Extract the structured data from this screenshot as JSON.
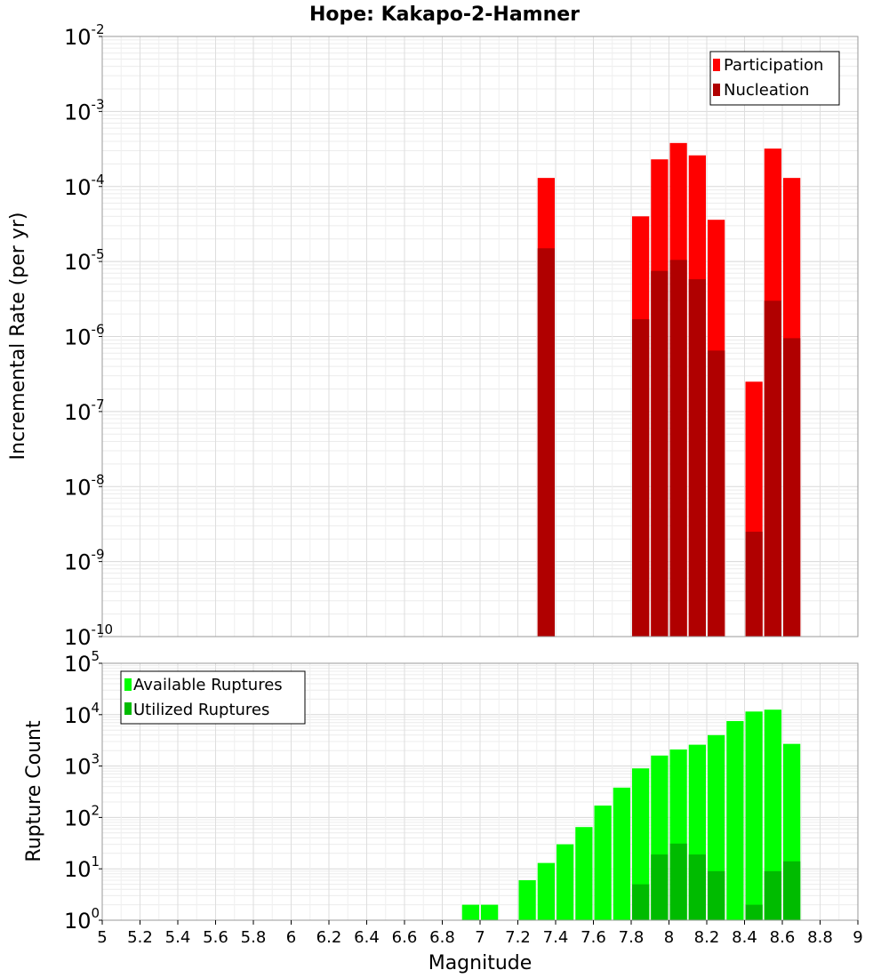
{
  "chart_data": [
    {
      "type": "bar",
      "title": "Hope: Kakapo-2-Hamner",
      "xlabel": "",
      "ylabel": "Incremental Rate (per yr)",
      "yscale": "log",
      "ylim_exponents": [
        -10,
        -2
      ],
      "xlim": [
        5,
        9
      ],
      "bin_width": 0.1,
      "legend_position": "top-right",
      "x": [
        7.35,
        7.85,
        7.95,
        8.05,
        8.15,
        8.25,
        8.45,
        8.55,
        8.65
      ],
      "series": [
        {
          "name": "Participation",
          "color": "#ff0000",
          "values": [
            0.00013,
            4e-05,
            0.00023,
            0.00038,
            0.00026,
            3.6e-05,
            2.5e-07,
            0.00032,
            0.00013
          ]
        },
        {
          "name": "Nucleation",
          "color": "#b00000",
          "values": [
            1.5e-05,
            1.7e-06,
            7.5e-06,
            1.05e-05,
            5.8e-06,
            6.5e-07,
            2.5e-09,
            3e-06,
            9.5e-07
          ]
        }
      ]
    },
    {
      "type": "bar",
      "title": "",
      "xlabel": "Magnitude",
      "ylabel": "Rupture Count",
      "yscale": "log",
      "ylim_exponents": [
        0,
        5
      ],
      "xlim": [
        5,
        9
      ],
      "bin_width": 0.1,
      "legend_position": "top-left",
      "series": [
        {
          "name": "Available Ruptures",
          "color": "#00ff00",
          "x": [
            6.45,
            6.95,
            7.05,
            7.15,
            7.25,
            7.35,
            7.45,
            7.55,
            7.65,
            7.75,
            7.85,
            7.95,
            8.05,
            8.15,
            8.25,
            8.35,
            8.45,
            8.55,
            8.65
          ],
          "values": [
            1,
            2,
            2,
            1,
            6,
            13,
            30,
            65,
            170,
            380,
            900,
            1600,
            2100,
            2600,
            4000,
            7500,
            11500,
            12500,
            2700
          ]
        },
        {
          "name": "Utilized Ruptures",
          "color": "#00bb00",
          "x": [
            7.35,
            7.85,
            7.95,
            8.05,
            8.15,
            8.25,
            8.45,
            8.55,
            8.65
          ],
          "values": [
            1,
            5,
            19,
            31,
            19,
            9,
            2,
            9,
            14
          ]
        }
      ]
    }
  ],
  "x_ticks": [
    "5",
    "5.2",
    "5.4",
    "5.6",
    "5.8",
    "6",
    "6.2",
    "6.4",
    "6.6",
    "6.8",
    "7",
    "7.2",
    "7.4",
    "7.6",
    "7.8",
    "8",
    "8.2",
    "8.4",
    "8.6",
    "8.8",
    "9"
  ],
  "top_y_ticks": [
    "-10",
    "-9",
    "-8",
    "-7",
    "-6",
    "-5",
    "-4",
    "-3",
    "-2"
  ],
  "bottom_y_ticks": [
    "0",
    "1",
    "2",
    "3",
    "4",
    "5"
  ],
  "y_tick_base": "10"
}
